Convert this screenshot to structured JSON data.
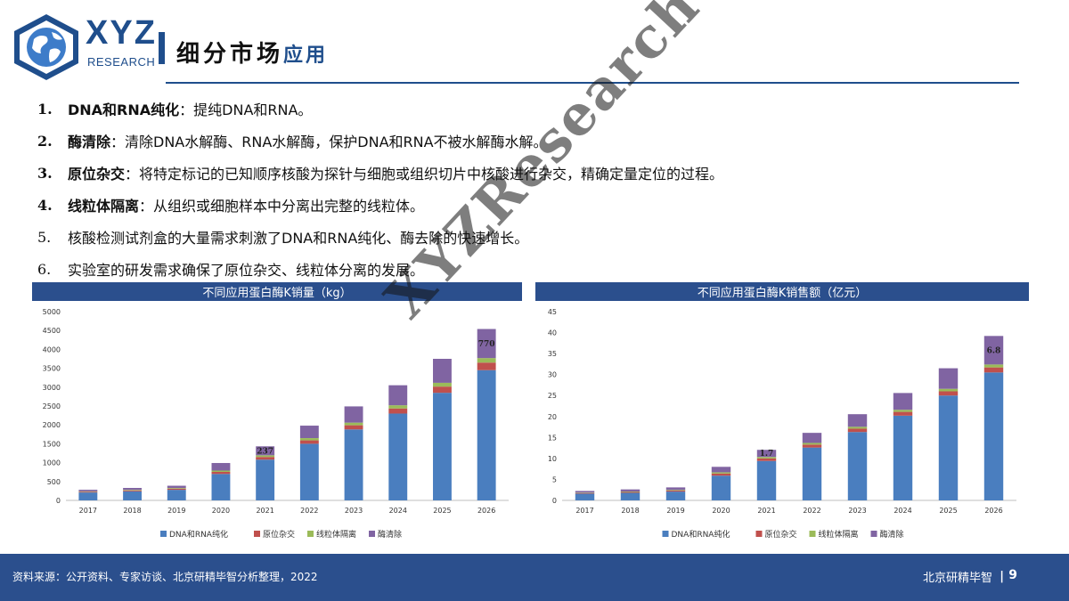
{
  "logo": {
    "main": "XYZ",
    "sub": "RESEARCH"
  },
  "title": {
    "main": "细分市场",
    "sub": "应用"
  },
  "bullets": [
    {
      "num": "1.",
      "term": "DNA和RNA纯化",
      "text": "：提纯DNA和RNA。"
    },
    {
      "num": "2.",
      "term": "酶清除",
      "text": "：清除DNA水解酶、RNA水解酶，保护DNA和RNA不被水解酶水解。"
    },
    {
      "num": "3.",
      "term": "原位杂交",
      "text": "：将特定标记的已知顺序核酸为探针与细胞或组织切片中核酸进行杂交，精确定量定位的过程。"
    },
    {
      "num": "4.",
      "term": "线粒体隔离",
      "text": "：从组织或细胞样本中分离出完整的线粒体。"
    },
    {
      "num": "5.",
      "term": "",
      "text": "核酸检测试剂盒的大量需求刺激了DNA和RNA纯化、酶去除的快速增长。"
    },
    {
      "num": "6.",
      "term": "",
      "text": "实验室的研发需求确保了原位杂交、线粒体分离的发展。"
    }
  ],
  "watermark": "XYZResearch",
  "chart_data": [
    {
      "type": "bar",
      "stacked": true,
      "title": "不同应用蛋白酶K销量（kg）",
      "categories": [
        "2017",
        "2018",
        "2019",
        "2020",
        "2021",
        "2022",
        "2023",
        "2024",
        "2025",
        "2026"
      ],
      "series": [
        {
          "name": "DNA和RNA纯化",
          "color": "#4a7ebf",
          "values": [
            210,
            240,
            280,
            700,
            1080,
            1500,
            1880,
            2300,
            2850,
            3450
          ]
        },
        {
          "name": "原位杂交",
          "color": "#c0504d",
          "values": [
            20,
            25,
            30,
            55,
            70,
            90,
            110,
            135,
            165,
            200
          ]
        },
        {
          "name": "线粒体隔离",
          "color": "#9bbb59",
          "values": [
            12,
            15,
            18,
            35,
            45,
            60,
            70,
            85,
            100,
            120
          ]
        },
        {
          "name": "酶清除",
          "color": "#8064a2",
          "values": [
            40,
            50,
            60,
            200,
            237,
            330,
            430,
            530,
            635,
            770
          ]
        }
      ],
      "data_labels": [
        {
          "category": "2021",
          "text": "237"
        },
        {
          "category": "2026",
          "text": "770"
        }
      ],
      "ylim": [
        0,
        5000
      ],
      "yticks": [
        0,
        500,
        1000,
        1500,
        2000,
        2500,
        3000,
        3500,
        4000,
        4500,
        5000
      ],
      "legend_position": "bottom"
    },
    {
      "type": "bar",
      "stacked": true,
      "title": "不同应用蛋白酶K销售额（亿元）",
      "categories": [
        "2017",
        "2018",
        "2019",
        "2020",
        "2021",
        "2022",
        "2023",
        "2024",
        "2025",
        "2026"
      ],
      "series": [
        {
          "name": "DNA和RNA纯化",
          "color": "#4a7ebf",
          "values": [
            1.6,
            1.8,
            2.1,
            5.9,
            9.4,
            12.6,
            16.3,
            20.2,
            25.0,
            30.5
          ]
        },
        {
          "name": "原位杂交",
          "color": "#c0504d",
          "values": [
            0.15,
            0.2,
            0.25,
            0.5,
            0.6,
            0.7,
            0.8,
            0.9,
            1.0,
            1.2
          ]
        },
        {
          "name": "线粒体隔离",
          "color": "#9bbb59",
          "values": [
            0.1,
            0.12,
            0.15,
            0.3,
            0.35,
            0.4,
            0.45,
            0.5,
            0.6,
            0.7
          ]
        },
        {
          "name": "酶清除",
          "color": "#8064a2",
          "values": [
            0.4,
            0.5,
            0.6,
            1.3,
            1.7,
            2.4,
            3.0,
            4.0,
            4.9,
            6.8
          ]
        }
      ],
      "data_labels": [
        {
          "category": "2021",
          "text": "1.7"
        },
        {
          "category": "2026",
          "text": "6.8"
        }
      ],
      "ylim": [
        0,
        45
      ],
      "yticks": [
        0,
        5,
        10,
        15,
        20,
        25,
        30,
        35,
        40,
        45
      ],
      "legend_position": "bottom"
    }
  ],
  "footer": {
    "source": "资料来源：公开资料、专家访谈、北京研精毕智分析整理，2022",
    "company": "北京研精毕智",
    "divider": "|",
    "page": "9"
  }
}
